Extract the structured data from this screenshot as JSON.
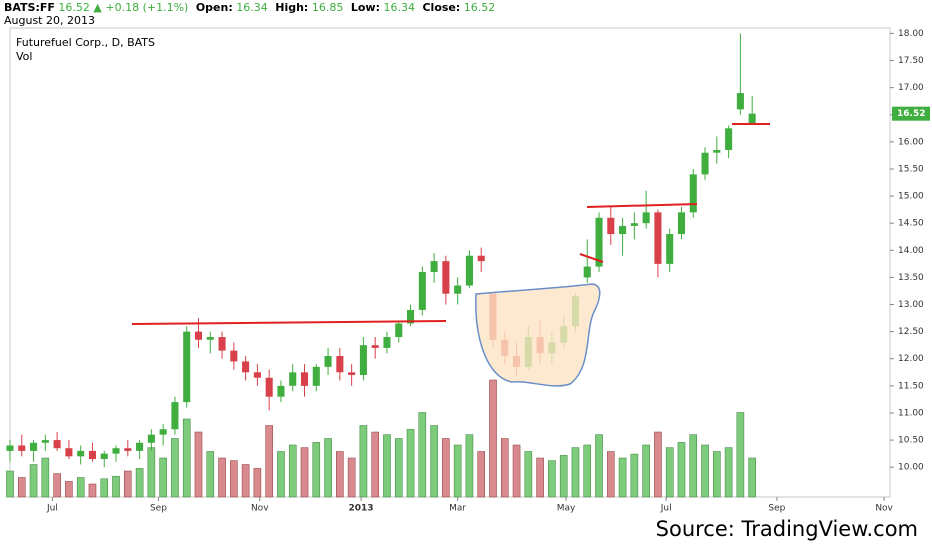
{
  "header": {
    "symbol": "BATS:FF",
    "last": "16.52",
    "change": "+0.18 (+1.1%)",
    "open_label": "Open:",
    "open": "16.34",
    "high_label": "High:",
    "high": "16.85",
    "low_label": "Low:",
    "low": "16.34",
    "close_label": "Close:",
    "close": "16.52",
    "date": "August 20, 2013"
  },
  "chart_data": {
    "type": "candlestick",
    "title": "Futurefuel Corp., D, BATS",
    "volume_label": "Vol",
    "open": [
      10.3,
      10.4,
      10.3,
      10.45,
      10.5,
      10.35,
      10.2,
      10.3,
      10.15,
      10.25,
      10.35,
      10.3,
      10.45,
      10.6,
      10.7,
      11.2,
      12.5,
      12.35,
      12.4,
      12.15,
      11.95,
      11.75,
      11.65,
      11.3,
      11.5,
      11.75,
      11.5,
      11.85,
      12.05,
      11.75,
      11.7,
      12.25,
      12.2,
      12.4,
      12.65,
      12.9,
      13.6,
      13.8,
      13.2,
      13.35,
      13.9,
      13.2,
      12.35,
      12.05,
      11.85,
      12.4,
      12.1,
      12.3,
      12.6,
      13.5,
      13.7,
      14.6,
      14.3,
      14.45,
      14.5,
      14.7,
      13.75,
      14.3,
      14.7,
      15.4,
      15.8,
      15.85,
      16.6,
      16.34
    ],
    "high": [
      10.5,
      10.6,
      10.5,
      10.6,
      10.65,
      10.5,
      10.4,
      10.45,
      10.3,
      10.4,
      10.5,
      10.5,
      10.7,
      10.8,
      11.3,
      12.6,
      12.75,
      12.5,
      12.5,
      12.3,
      12.05,
      11.9,
      11.8,
      11.6,
      11.9,
      11.9,
      11.9,
      12.2,
      12.2,
      11.9,
      12.4,
      12.4,
      12.5,
      12.7,
      13.0,
      13.7,
      13.95,
      13.9,
      13.5,
      14.0,
      14.05,
      13.2,
      12.5,
      12.3,
      12.6,
      12.7,
      12.5,
      12.8,
      13.2,
      14.2,
      14.7,
      14.8,
      14.6,
      14.7,
      15.1,
      14.75,
      14.4,
      14.8,
      15.5,
      15.9,
      16.1,
      16.3,
      18.0,
      16.85
    ],
    "low": [
      10.1,
      10.2,
      10.1,
      10.3,
      10.3,
      10.15,
      10.05,
      10.1,
      10.0,
      10.1,
      10.2,
      10.15,
      10.3,
      10.4,
      10.6,
      11.1,
      12.2,
      12.1,
      12.0,
      11.8,
      11.6,
      11.5,
      11.05,
      11.2,
      11.4,
      11.3,
      11.4,
      11.7,
      11.6,
      11.5,
      11.6,
      12.0,
      12.1,
      12.3,
      12.6,
      12.8,
      13.4,
      13.0,
      13.0,
      13.3,
      13.6,
      12.2,
      11.9,
      11.7,
      11.8,
      11.9,
      11.9,
      12.2,
      12.5,
      13.4,
      13.6,
      14.1,
      13.9,
      14.2,
      14.4,
      13.5,
      13.6,
      14.2,
      14.6,
      15.3,
      15.6,
      15.7,
      16.5,
      16.34
    ],
    "close": [
      10.4,
      10.3,
      10.45,
      10.5,
      10.35,
      10.2,
      10.3,
      10.15,
      10.25,
      10.35,
      10.3,
      10.45,
      10.6,
      10.7,
      11.2,
      12.5,
      12.35,
      12.4,
      12.15,
      11.95,
      11.75,
      11.65,
      11.3,
      11.5,
      11.75,
      11.5,
      11.85,
      12.05,
      11.75,
      11.7,
      12.25,
      12.2,
      12.4,
      12.65,
      12.9,
      13.6,
      13.8,
      13.2,
      13.35,
      13.9,
      13.8,
      12.35,
      12.05,
      11.85,
      12.4,
      12.1,
      12.3,
      12.6,
      13.15,
      13.7,
      14.6,
      14.3,
      14.45,
      14.5,
      14.7,
      13.75,
      14.3,
      14.7,
      15.4,
      15.8,
      15.85,
      16.25,
      16.9,
      16.52
    ],
    "volume": [
      20,
      15,
      25,
      30,
      18,
      12,
      15,
      10,
      14,
      16,
      20,
      22,
      38,
      30,
      45,
      60,
      50,
      35,
      30,
      28,
      25,
      22,
      55,
      35,
      40,
      38,
      42,
      45,
      35,
      30,
      55,
      50,
      48,
      45,
      52,
      65,
      55,
      45,
      40,
      48,
      35,
      90,
      45,
      40,
      35,
      30,
      28,
      32,
      38,
      40,
      48,
      35,
      30,
      33,
      40,
      50,
      38,
      42,
      48,
      40,
      35,
      38,
      65,
      30
    ],
    "up_color": "#3fae3f",
    "down_color": "#d9414a",
    "vol_up_color": "#7ccc7c",
    "vol_down_color": "#d98a8f",
    "xlim": [
      0,
      74.7
    ],
    "xticks": [
      {
        "value": 3.6,
        "label": "Jul"
      },
      {
        "value": 12.6,
        "label": "Sep"
      },
      {
        "value": 21.2,
        "label": "Nov"
      },
      {
        "value": 29.8,
        "label": "2013"
      },
      {
        "value": 38.0,
        "label": "Mar"
      },
      {
        "value": 47.2,
        "label": "May"
      },
      {
        "value": 55.7,
        "label": "Jul"
      },
      {
        "value": 65.1,
        "label": "Sep"
      },
      {
        "value": 74.2,
        "label": "Nov"
      }
    ],
    "ylim": [
      9.45,
      18.1
    ],
    "yticks": [
      {
        "value": 10,
        "label": "10.00"
      },
      {
        "value": 10.5,
        "label": "10.50"
      },
      {
        "value": 11,
        "label": "11.00"
      },
      {
        "value": 11.5,
        "label": "11.50"
      },
      {
        "value": 12,
        "label": "12.00"
      },
      {
        "value": 12.5,
        "label": "12.50"
      },
      {
        "value": 13,
        "label": "13.00"
      },
      {
        "value": 13.5,
        "label": "13.50"
      },
      {
        "value": 14,
        "label": "14.00"
      },
      {
        "value": 14.5,
        "label": "14.50"
      },
      {
        "value": 15,
        "label": "15.00"
      },
      {
        "value": 15.5,
        "label": "15.50"
      },
      {
        "value": 16,
        "label": "16.00"
      },
      {
        "value": 16.5,
        "label": "16.50"
      },
      {
        "value": 17,
        "label": "17.00"
      },
      {
        "value": 17.5,
        "label": "17.50"
      },
      {
        "value": 18,
        "label": "18.00"
      }
    ],
    "last_price": 16.52,
    "last_price_color": "#3fae3f",
    "grid": false,
    "source": "Source: TradingView.com"
  }
}
